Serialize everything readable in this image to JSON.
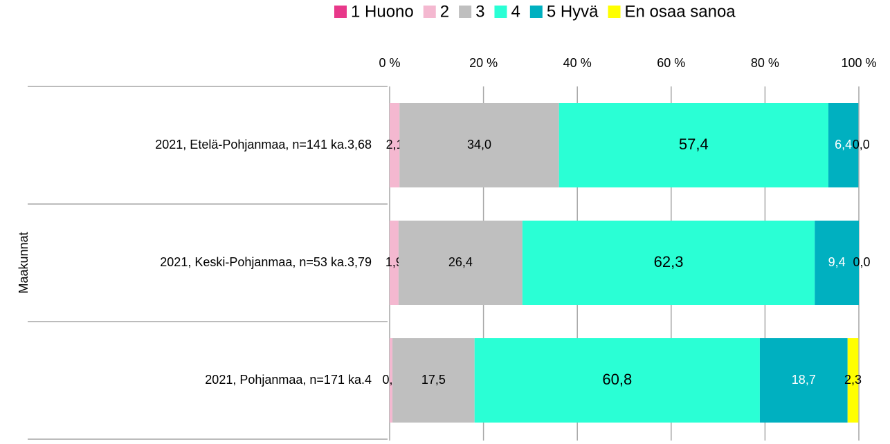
{
  "chart_data": {
    "type": "stacked-bar-horizontal",
    "y_label": "Maakunnat",
    "categories": [
      "2021, Etelä-Pohjanmaa, n=141 ka.3,68",
      "2021, Keski-Pohjanmaa, n=53 ka.3,79",
      "2021, Pohjanmaa, n=171 ka.4"
    ],
    "series": [
      {
        "name": "1 Huono",
        "color": "#e8388a",
        "values": [
          0,
          0,
          0
        ],
        "value_labels": [
          null,
          null,
          null
        ],
        "label_color": "#000000"
      },
      {
        "name": "2",
        "color": "#f4b8d0",
        "values": [
          2.1,
          1.9,
          0.6
        ],
        "value_labels": [
          "2,1",
          "1,9",
          "0,6"
        ],
        "label_color": "#000000"
      },
      {
        "name": "3",
        "color": "#bfbfbf",
        "values": [
          34.0,
          26.4,
          17.5
        ],
        "value_labels": [
          "34,0",
          "26,4",
          "17,5"
        ],
        "label_color": "#000000"
      },
      {
        "name": "4",
        "color": "#2affd5",
        "values": [
          57.4,
          62.3,
          60.8
        ],
        "value_labels": [
          "57,4",
          "62,3",
          "60,8"
        ],
        "label_color": "#000000"
      },
      {
        "name": "5 Hyvä",
        "color": "#00b0c0",
        "values": [
          6.4,
          9.4,
          18.7
        ],
        "value_labels": [
          "6,4",
          "9,4",
          "18,7"
        ],
        "label_color": "#ffffff"
      },
      {
        "name": "En osaa sanoa",
        "color": "#ffff00",
        "values": [
          0.0,
          0.0,
          2.3
        ],
        "value_labels": [
          "0,0",
          "0,0",
          "2,3"
        ],
        "label_color": "#000000"
      }
    ],
    "xlim": [
      0,
      100
    ],
    "xticks": [
      {
        "value": 0,
        "label": "0 %"
      },
      {
        "value": 20,
        "label": "20 %"
      },
      {
        "value": 40,
        "label": "40 %"
      },
      {
        "value": 60,
        "label": "60 %"
      },
      {
        "value": 80,
        "label": "80 %"
      },
      {
        "value": 100,
        "label": "100 %"
      }
    ],
    "grid": true,
    "legend": "top-right"
  }
}
